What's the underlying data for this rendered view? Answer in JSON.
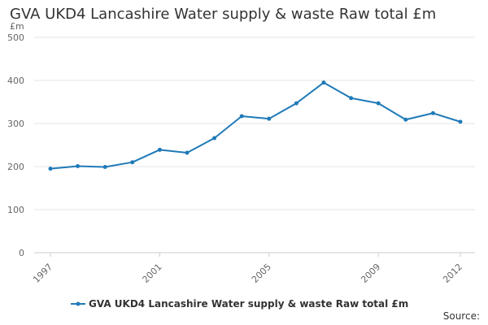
{
  "chart_data": {
    "type": "line",
    "title": "GVA UKD4 Lancashire Water supply & waste Raw total £m",
    "xlabel": "",
    "ylabel": "£m",
    "x": [
      1997,
      1998,
      1999,
      2000,
      2001,
      2002,
      2003,
      2004,
      2005,
      2006,
      2007,
      2008,
      2009,
      2010,
      2011,
      2012
    ],
    "series": [
      {
        "name": "GVA UKD4 Lancashire Water supply & waste Raw total £m",
        "values": [
          195,
          201,
          199,
          210,
          239,
          232,
          266,
          317,
          311,
          347,
          395,
          359,
          347,
          309,
          324,
          304
        ]
      }
    ],
    "ylim": [
      0,
      500
    ],
    "yticks": [
      0,
      100,
      200,
      300,
      400,
      500
    ],
    "xtick_labels": [
      "1997",
      "2001",
      "2005",
      "2009",
      "2012"
    ],
    "grid": true,
    "legend_position": "bottom",
    "line_color": "#1f7ab8",
    "source_label": "Source:"
  }
}
